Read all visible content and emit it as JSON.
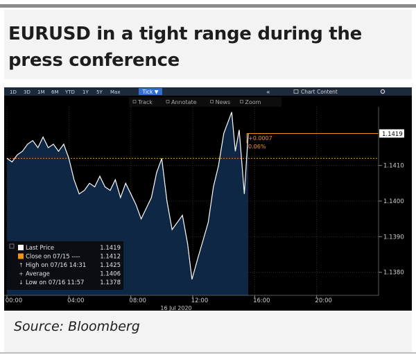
{
  "title": "EURUSD in a tight range during the press conference",
  "source": "Source: Bloomberg",
  "toolbar": {
    "ranges": [
      "1D",
      "3D",
      "1M",
      "6M",
      "YTD",
      "1Y",
      "5Y",
      "Max"
    ],
    "active_range": "Tick ▼",
    "collapse": "«",
    "chart_content": "Chart Content",
    "tools": [
      "Track",
      "Annotate",
      "News",
      "Zoom"
    ]
  },
  "colors": {
    "background": "#000000",
    "area_fill": "#0d2744",
    "price_line": "#ffffff",
    "close_line": "#f29111",
    "grid": "#3a3a3a",
    "toolbar": "#1d2a3c",
    "label_bg": "#ffffff"
  },
  "chart_data": {
    "type": "line",
    "xlabel": "16 Jul 2020",
    "ylim": [
      1.13735,
      1.14265
    ],
    "x_ticks": [
      "00:00",
      "04:00",
      "08:00",
      "12:00",
      "16:00",
      "20:00"
    ],
    "y_ticks": [
      "1.1380",
      "1.1390",
      "1.1400",
      "1.1410"
    ],
    "last_price_label": "1.1419",
    "change_annotation": [
      "+0.0007",
      "0.06%"
    ],
    "close_level": 1.1412,
    "last_level": 1.1419,
    "series": [
      {
        "x": [
          "00:00",
          "00:20",
          "00:40",
          "01:00",
          "01:20",
          "01:40",
          "02:00",
          "02:20",
          "02:40",
          "03:00",
          "03:20",
          "03:40",
          "04:00",
          "04:20",
          "04:40",
          "05:00",
          "05:20",
          "05:40",
          "06:00",
          "06:20",
          "06:40",
          "07:00",
          "07:20",
          "07:40",
          "08:00",
          "08:20",
          "08:40",
          "09:00",
          "09:20",
          "09:40",
          "10:00",
          "10:20",
          "10:40",
          "11:00",
          "11:20",
          "11:40",
          "11:57",
          "12:20",
          "12:40",
          "13:00",
          "13:20",
          "13:40",
          "14:00",
          "14:31",
          "14:45",
          "15:00",
          "15:20",
          "15:35"
        ],
        "values": [
          1.1412,
          1.1411,
          1.1413,
          1.1414,
          1.1416,
          1.1417,
          1.1415,
          1.1418,
          1.1415,
          1.1416,
          1.1414,
          1.1416,
          1.1412,
          1.1406,
          1.1402,
          1.1403,
          1.1405,
          1.1404,
          1.1407,
          1.1404,
          1.1403,
          1.1406,
          1.1401,
          1.1405,
          1.1402,
          1.1399,
          1.1395,
          1.1398,
          1.1401,
          1.1408,
          1.1412,
          1.14,
          1.1392,
          1.1394,
          1.1396,
          1.1388,
          1.1378,
          1.1384,
          1.1389,
          1.1394,
          1.1404,
          1.141,
          1.1419,
          1.1425,
          1.1414,
          1.142,
          1.1402,
          1.1419
        ]
      }
    ],
    "legend": {
      "placement": "bottom-left",
      "entries": [
        {
          "label": "Last Price",
          "value": "1.1419"
        },
        {
          "label": "Close on 07/15 ----",
          "value": "1.1412"
        },
        {
          "label": "High on 07/16 14:31",
          "value": "1.1425"
        },
        {
          "label": "Average",
          "value": "1.1406"
        },
        {
          "label": "Low on 07/16 11:57",
          "value": "1.1378"
        }
      ]
    }
  }
}
